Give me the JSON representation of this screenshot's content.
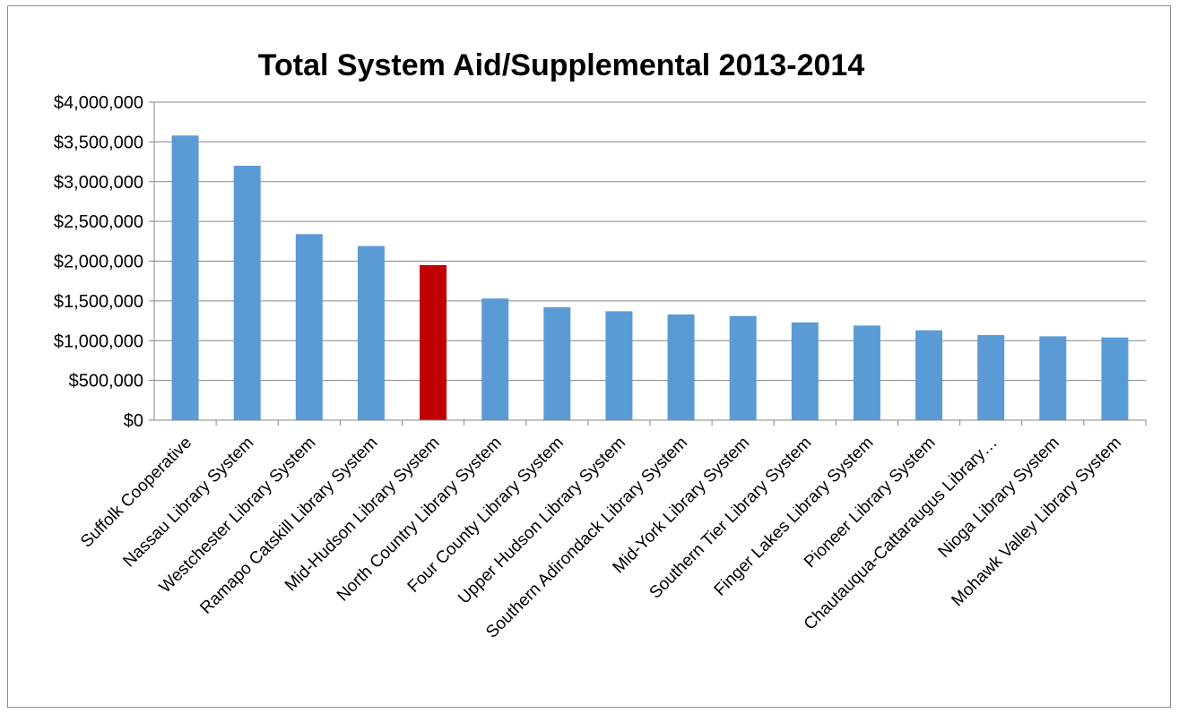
{
  "chart_data": {
    "type": "bar",
    "title": "Total System Aid/Supplemental 2013-2014",
    "xlabel": "",
    "ylabel": "",
    "ylim": [
      0,
      4000000
    ],
    "yticks": [
      "$0",
      "$500,000",
      "$1,000,000",
      "$1,500,000",
      "$2,000,000",
      "$2,500,000",
      "$3,000,000",
      "$3,500,000",
      "$4,000,000"
    ],
    "grid": true,
    "legend": "none",
    "categories": [
      "Suffolk Cooperative",
      "Nassau Library System",
      "Westchester Library System",
      "Ramapo Catskill Library System",
      "Mid-Hudson Library System",
      "North Country Library System",
      "Four County Library System",
      "Upper Hudson Library System",
      "Southern Adirondack Library System",
      "Mid-York Library System",
      "Southern Tier Library System",
      "Finger Lakes Library System",
      "Pioneer Library System",
      "Chautauqua-Cattaraugus Library…",
      "Nioga Library System",
      "Mohawk Valley Library System"
    ],
    "values": [
      3580000,
      3200000,
      2340000,
      2190000,
      1950000,
      1530000,
      1420000,
      1370000,
      1330000,
      1310000,
      1230000,
      1190000,
      1130000,
      1070000,
      1055000,
      1040000
    ],
    "highlight_index": 4,
    "colors": {
      "bar": "#5b9bd5",
      "highlight": "#c00000",
      "grid": "#868686",
      "axis": "#868686"
    }
  }
}
